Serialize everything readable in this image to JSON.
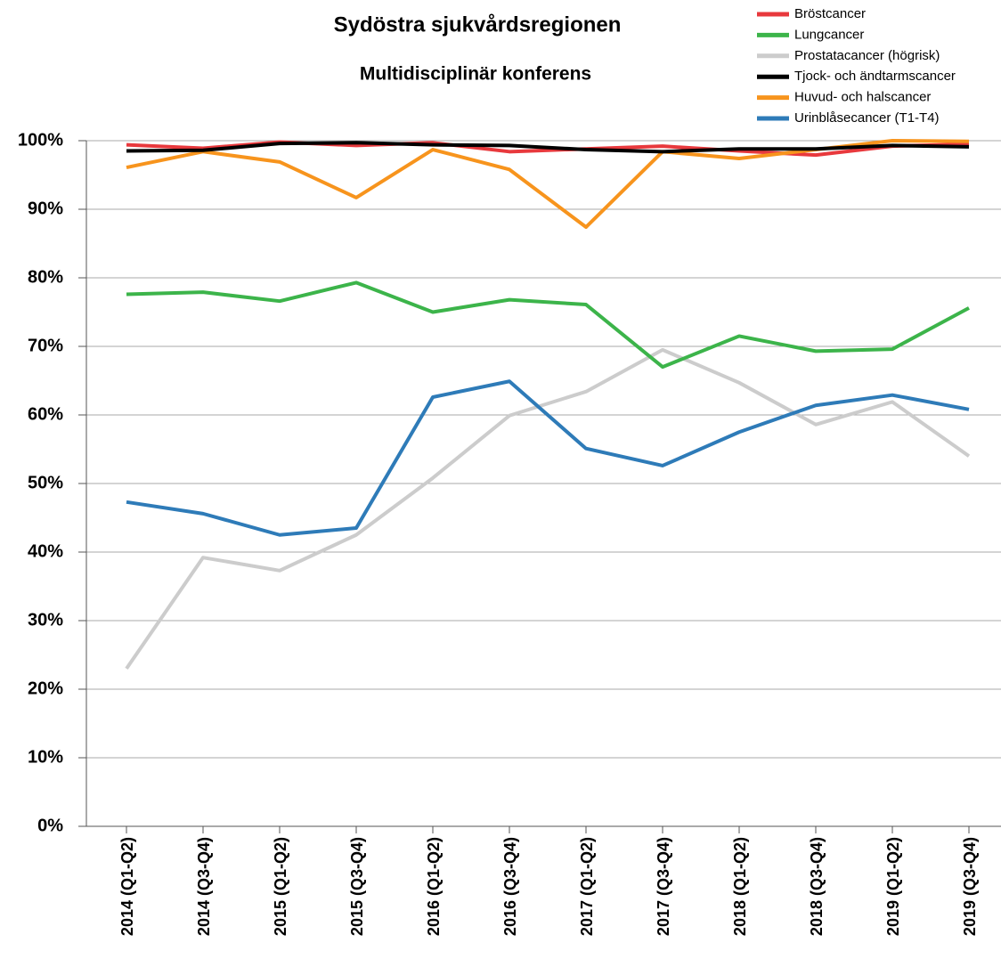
{
  "chart_data": {
    "type": "line",
    "title": "Sydöstra sjukvårdsregionen",
    "subtitle": "Multidisciplinär konferens",
    "categories": [
      "2014 (Q1-Q2)",
      "2014 (Q3-Q4)",
      "2015 (Q1-Q2)",
      "2015 (Q3-Q4)",
      "2016 (Q1-Q2)",
      "2016 (Q3-Q4)",
      "2017 (Q1-Q2)",
      "2017 (Q3-Q4)",
      "2018 (Q1-Q2)",
      "2018 (Q3-Q4)",
      "2019 (Q1-Q2)",
      "2019 (Q3-Q4)"
    ],
    "series": [
      {
        "name": "Bröstcancer",
        "color": "#e8393d",
        "values": [
          99.4,
          98.9,
          99.8,
          99.3,
          99.7,
          98.4,
          98.8,
          99.2,
          98.5,
          97.9,
          99.2,
          99.5
        ]
      },
      {
        "name": "Lungcancer",
        "color": "#3cb44a",
        "values": [
          77.6,
          77.9,
          76.6,
          79.3,
          75.0,
          76.8,
          76.1,
          67.0,
          71.5,
          69.3,
          69.6,
          75.6
        ]
      },
      {
        "name": "Prostatacancer (högrisk)",
        "color": "#cccccc",
        "values": [
          23.0,
          39.2,
          37.3,
          42.5,
          50.8,
          59.9,
          63.4,
          69.5,
          64.7,
          58.6,
          61.9,
          54.0
        ]
      },
      {
        "name": "Tjock- och ändtarmscancer",
        "color": "#000000",
        "values": [
          98.5,
          98.6,
          99.6,
          99.7,
          99.4,
          99.3,
          98.7,
          98.4,
          98.8,
          98.8,
          99.3,
          99.1
        ]
      },
      {
        "name": "Huvud- och halscancer",
        "color": "#f7941d",
        "values": [
          96.1,
          98.4,
          96.9,
          91.7,
          98.7,
          95.8,
          87.4,
          98.4,
          97.4,
          98.7,
          100,
          99.9
        ]
      },
      {
        "name": "Urinblåsecancer (T1-T4)",
        "color": "#2e7bb8",
        "values": [
          47.3,
          45.6,
          42.5,
          43.5,
          62.6,
          64.9,
          55.1,
          52.6,
          57.5,
          61.4,
          62.9,
          60.8
        ]
      }
    ],
    "ylim": [
      0,
      100
    ],
    "yticks": [
      {
        "value": 0,
        "label": "0%"
      },
      {
        "value": 10,
        "label": "10%"
      },
      {
        "value": 20,
        "label": "20%"
      },
      {
        "value": 30,
        "label": "30%"
      },
      {
        "value": 40,
        "label": "40%"
      },
      {
        "value": 50,
        "label": "50%"
      },
      {
        "value": 60,
        "label": "60%"
      },
      {
        "value": 70,
        "label": "70%"
      },
      {
        "value": 80,
        "label": "80%"
      },
      {
        "value": 90,
        "label": "90%"
      },
      {
        "value": 100,
        "label": "100%"
      }
    ],
    "grid": true,
    "legend": "top-right"
  }
}
